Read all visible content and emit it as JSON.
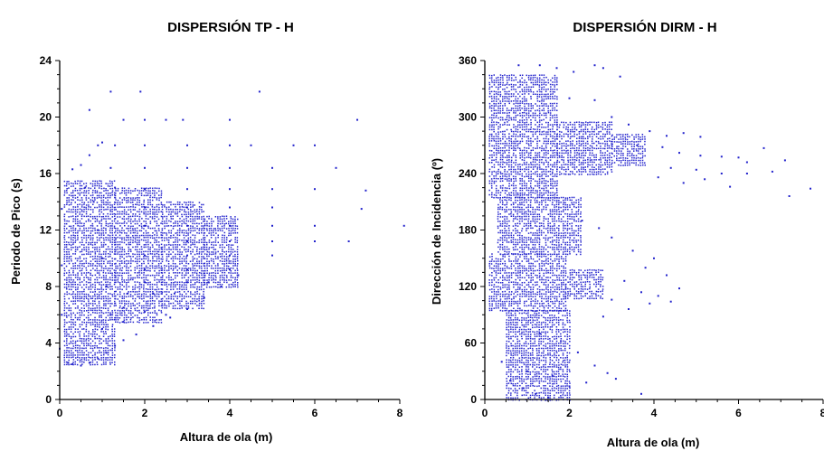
{
  "chart_data": [
    {
      "type": "scatter",
      "title": "DISPERSIÓN TP - H",
      "xlabel": "Altura de ola (m)",
      "ylabel": "Periodo de Pico (s)",
      "xlim": [
        0,
        8
      ],
      "ylim": [
        0,
        24
      ],
      "xticks": [
        0,
        2,
        4,
        6,
        8
      ],
      "yticks": [
        0,
        4,
        8,
        12,
        16,
        20,
        24
      ],
      "marker_color": "#2222cc",
      "grid": false,
      "series": [
        {
          "values": [
            [
              0.2,
              2.6
            ],
            [
              0.3,
              2.5
            ],
            [
              0.5,
              2.4
            ],
            [
              0.7,
              2.6
            ],
            [
              0.9,
              2.9
            ],
            [
              1.1,
              3.3
            ],
            [
              1.3,
              3.8
            ],
            [
              1.5,
              4.2
            ],
            [
              1.8,
              4.6
            ],
            [
              2.2,
              5.2
            ],
            [
              2.6,
              5.8
            ],
            [
              3.0,
              6.4
            ],
            [
              3.4,
              7.2
            ],
            [
              3.8,
              8.0
            ],
            [
              4.2,
              8.8
            ],
            [
              0.0,
              3.6
            ],
            [
              0.05,
              6.0
            ],
            [
              0.05,
              9.5
            ],
            [
              0.05,
              13.5
            ],
            [
              0.3,
              16.3
            ],
            [
              0.5,
              16.6
            ],
            [
              0.7,
              17.3
            ],
            [
              0.9,
              18.0
            ],
            [
              1.2,
              21.8
            ],
            [
              1.9,
              21.8
            ],
            [
              4.7,
              21.8
            ],
            [
              7.0,
              19.8
            ],
            [
              0.7,
              20.5
            ],
            [
              1.0,
              18.2
            ],
            [
              1.5,
              19.8
            ],
            [
              2.0,
              19.8
            ],
            [
              2.5,
              19.8
            ],
            [
              2.9,
              19.8
            ],
            [
              4.0,
              19.8
            ],
            [
              1.3,
              18.0
            ],
            [
              2.0,
              18.0
            ],
            [
              3.0,
              18.0
            ],
            [
              4.0,
              18.0
            ],
            [
              4.5,
              18.0
            ],
            [
              5.5,
              18.0
            ],
            [
              6.0,
              18.0
            ],
            [
              1.2,
              16.4
            ],
            [
              2.0,
              16.4
            ],
            [
              3.0,
              16.4
            ],
            [
              4.0,
              16.4
            ],
            [
              5.0,
              16.4
            ],
            [
              6.5,
              16.4
            ],
            [
              7.2,
              14.8
            ],
            [
              7.1,
              13.5
            ],
            [
              2.0,
              14.9
            ],
            [
              3.0,
              14.9
            ],
            [
              4.0,
              14.9
            ],
            [
              5.0,
              14.9
            ],
            [
              6.0,
              14.9
            ],
            [
              2.0,
              13.6
            ],
            [
              3.0,
              13.6
            ],
            [
              4.0,
              13.6
            ],
            [
              5.0,
              13.6
            ],
            [
              2.0,
              12.3
            ],
            [
              3.0,
              12.3
            ],
            [
              4.0,
              12.3
            ],
            [
              5.0,
              12.3
            ],
            [
              6.0,
              12.3
            ],
            [
              8.1,
              12.3
            ],
            [
              3.0,
              11.2
            ],
            [
              4.0,
              11.2
            ],
            [
              5.0,
              11.2
            ],
            [
              6.0,
              11.2
            ],
            [
              6.8,
              11.2
            ],
            [
              2.0,
              10.2
            ],
            [
              3.0,
              10.2
            ],
            [
              4.0,
              10.2
            ],
            [
              5.0,
              10.2
            ],
            [
              2.0,
              9.2
            ],
            [
              3.0,
              9.2
            ],
            [
              4.0,
              9.2
            ],
            [
              2.0,
              8.3
            ],
            [
              3.0,
              8.3
            ],
            [
              3.5,
              8.3
            ],
            [
              1.6,
              7.5
            ],
            [
              2.2,
              7.5
            ],
            [
              2.7,
              7.5
            ],
            [
              1.5,
              6.5
            ],
            [
              2.0,
              6.2
            ],
            [
              2.5,
              6.0
            ],
            [
              1.0,
              5.0
            ],
            [
              1.5,
              5.5
            ],
            [
              0.6,
              15.0
            ],
            [
              0.8,
              14.0
            ],
            [
              0.9,
              12.0
            ],
            [
              1.0,
              10.0
            ],
            [
              1.1,
              8.0
            ],
            [
              1.2,
              6.0
            ],
            [
              1.3,
              15.0
            ]
          ]
        }
      ],
      "dense_regions": [
        {
          "x": [
            0.1,
            1.3
          ],
          "y": [
            2.5,
            15.5
          ]
        },
        {
          "x": [
            1.3,
            2.4
          ],
          "y": [
            5.5,
            15.0
          ]
        },
        {
          "x": [
            2.4,
            3.4
          ],
          "y": [
            6.5,
            14.0
          ]
        },
        {
          "x": [
            3.4,
            4.2
          ],
          "y": [
            8.0,
            13.0
          ]
        }
      ]
    },
    {
      "type": "scatter",
      "title": "DISPERSIÓN DIRM - H",
      "xlabel": "Altura de ola (m)",
      "ylabel": "Dirección de Incidencia (º)",
      "xlim": [
        0,
        8
      ],
      "ylim": [
        0,
        360
      ],
      "xticks": [
        0,
        2,
        4,
        6,
        8
      ],
      "yticks": [
        0,
        60,
        120,
        180,
        240,
        300,
        360
      ],
      "marker_color": "#2222cc",
      "grid": false,
      "series": [
        {
          "values": [
            [
              0.8,
              355
            ],
            [
              1.3,
              355
            ],
            [
              1.7,
              352
            ],
            [
              2.1,
              348
            ],
            [
              2.6,
              355
            ],
            [
              2.8,
              352
            ],
            [
              3.2,
              343
            ],
            [
              2.0,
              320
            ],
            [
              2.6,
              318
            ],
            [
              3.0,
              300
            ],
            [
              3.4,
              292
            ],
            [
              3.9,
              285
            ],
            [
              4.3,
              280
            ],
            [
              4.7,
              283
            ],
            [
              5.1,
              279
            ],
            [
              3.6,
              270
            ],
            [
              4.2,
              268
            ],
            [
              4.6,
              262
            ],
            [
              5.1,
              259
            ],
            [
              5.6,
              258
            ],
            [
              6.0,
              257
            ],
            [
              6.2,
              252
            ],
            [
              6.6,
              267
            ],
            [
              7.1,
              254
            ],
            [
              4.4,
              246
            ],
            [
              5.0,
              244
            ],
            [
              5.6,
              240
            ],
            [
              6.2,
              240
            ],
            [
              6.8,
              242
            ],
            [
              7.2,
              216
            ],
            [
              7.7,
              224
            ],
            [
              8.2,
              219
            ],
            [
              4.1,
              236
            ],
            [
              4.7,
              230
            ],
            [
              5.2,
              234
            ],
            [
              5.8,
              226
            ],
            [
              2.3,
              190
            ],
            [
              2.7,
              182
            ],
            [
              3.0,
              172
            ],
            [
              3.5,
              158
            ],
            [
              4.0,
              150
            ],
            [
              3.8,
              140
            ],
            [
              4.3,
              132
            ],
            [
              4.6,
              118
            ],
            [
              4.4,
              104
            ],
            [
              3.3,
              126
            ],
            [
              3.7,
              114
            ],
            [
              4.1,
              110
            ],
            [
              3.9,
              102
            ],
            [
              3.0,
              106
            ],
            [
              3.4,
              96
            ],
            [
              2.8,
              88
            ],
            [
              1.3,
              70
            ],
            [
              1.8,
              62
            ],
            [
              2.2,
              50
            ],
            [
              2.6,
              36
            ],
            [
              2.9,
              28
            ],
            [
              3.1,
              22
            ],
            [
              3.7,
              6
            ],
            [
              0.6,
              20
            ],
            [
              0.9,
              12
            ],
            [
              1.2,
              6
            ],
            [
              1.5,
              2
            ],
            [
              0.4,
              40
            ],
            [
              1.0,
              30
            ],
            [
              1.6,
              25
            ],
            [
              2.0,
              14
            ],
            [
              2.4,
              18
            ]
          ]
        }
      ],
      "dense_regions": [
        {
          "x": [
            0.1,
            1.7
          ],
          "y": [
            215,
            345
          ]
        },
        {
          "x": [
            1.7,
            3.0
          ],
          "y": [
            238,
            295
          ]
        },
        {
          "x": [
            3.0,
            3.8
          ],
          "y": [
            248,
            282
          ]
        },
        {
          "x": [
            0.1,
            1.9
          ],
          "y": [
            95,
            155
          ]
        },
        {
          "x": [
            1.9,
            2.8
          ],
          "y": [
            108,
            138
          ]
        },
        {
          "x": [
            0.5,
            2.0
          ],
          "y": [
            0,
            95
          ]
        },
        {
          "x": [
            0.3,
            2.3
          ],
          "y": [
            155,
            215
          ]
        }
      ]
    }
  ]
}
